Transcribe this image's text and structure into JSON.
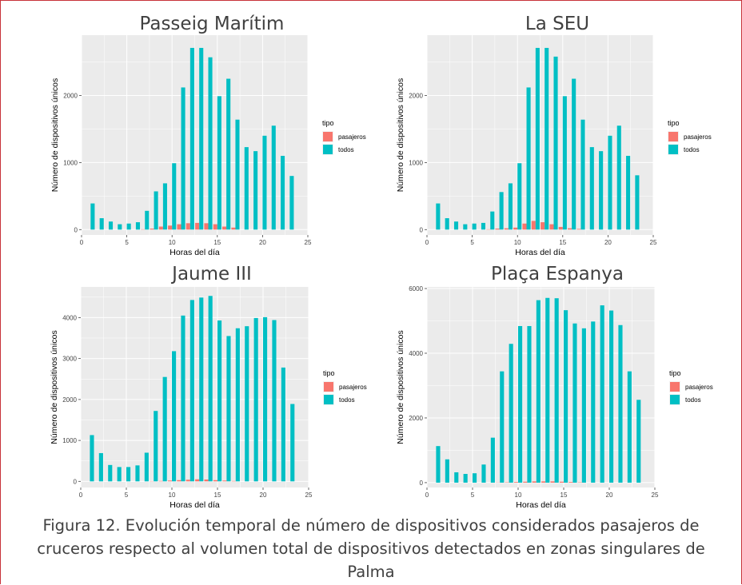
{
  "caption": "Figura 12. Evolución temporal de número de dispositivos considerados pasajeros de cruceros respecto al volumen total de dispositivos detectados en zonas singulares de Palma",
  "colors": {
    "pasajeros": "#f8766d",
    "todos": "#00bfc4",
    "panel": "#ebebeb",
    "grid": "#ffffff"
  },
  "chart_data": [
    {
      "type": "bar",
      "title": "Passeig Marítim",
      "xlabel": "Horas del día",
      "ylabel": "Número de dispositivos únicos",
      "xlim": [
        0,
        25
      ],
      "ylim": [
        -80,
        2900
      ],
      "xticks": [
        0,
        5,
        10,
        15,
        20,
        25
      ],
      "yticks": [
        0,
        1000,
        2000
      ],
      "legend": {
        "title": "tipo",
        "position": "right",
        "entries": [
          "pasajeros",
          "todos"
        ]
      },
      "x": [
        1,
        2,
        3,
        4,
        5,
        6,
        7,
        8,
        9,
        10,
        11,
        12,
        13,
        14,
        15,
        16,
        17,
        18,
        19,
        20,
        21,
        22,
        23
      ],
      "series": [
        {
          "name": "pasajeros",
          "values": [
            0,
            0,
            0,
            0,
            0,
            0,
            5,
            15,
            45,
            60,
            80,
            95,
            100,
            95,
            80,
            45,
            30,
            0,
            0,
            0,
            0,
            0,
            0
          ]
        },
        {
          "name": "todos",
          "values": [
            390,
            170,
            120,
            80,
            90,
            110,
            280,
            570,
            690,
            990,
            2120,
            2710,
            2710,
            2570,
            1990,
            2250,
            1640,
            1230,
            1170,
            1400,
            1550,
            1100,
            800
          ]
        }
      ]
    },
    {
      "type": "bar",
      "title": "La SEU",
      "xlabel": "Horas del día",
      "ylabel": "Número de dispositivos únicos",
      "xlim": [
        0,
        25
      ],
      "ylim": [
        -80,
        2900
      ],
      "xticks": [
        0,
        5,
        10,
        15,
        20,
        25
      ],
      "yticks": [
        0,
        1000,
        2000
      ],
      "legend": {
        "title": "tipo",
        "position": "right",
        "entries": [
          "pasajeros",
          "todos"
        ]
      },
      "x": [
        1,
        2,
        3,
        4,
        5,
        6,
        7,
        8,
        9,
        10,
        11,
        12,
        13,
        14,
        15,
        16,
        17,
        18,
        19,
        20,
        21,
        22,
        23
      ],
      "series": [
        {
          "name": "pasajeros",
          "values": [
            0,
            0,
            0,
            0,
            0,
            0,
            5,
            15,
            20,
            30,
            90,
            130,
            110,
            80,
            40,
            20,
            10,
            0,
            0,
            0,
            0,
            0,
            0
          ]
        },
        {
          "name": "todos",
          "values": [
            390,
            170,
            120,
            80,
            90,
            100,
            270,
            560,
            690,
            990,
            2120,
            2710,
            2710,
            2580,
            1990,
            2250,
            1640,
            1230,
            1170,
            1400,
            1550,
            1100,
            810
          ]
        }
      ]
    },
    {
      "type": "bar",
      "title": "Jaume III",
      "xlabel": "Horas del día",
      "ylabel": "Número de dispositivos únicos",
      "xlim": [
        0,
        25
      ],
      "ylim": [
        -150,
        4750
      ],
      "xticks": [
        0,
        5,
        10,
        15,
        20,
        25
      ],
      "yticks": [
        0,
        1000,
        2000,
        3000,
        4000
      ],
      "legend": {
        "title": "tipo",
        "position": "right",
        "entries": [
          "pasajeros",
          "todos"
        ]
      },
      "x": [
        1,
        2,
        3,
        4,
        5,
        6,
        7,
        8,
        9,
        10,
        11,
        12,
        13,
        14,
        15,
        16,
        17,
        18,
        19,
        20,
        21,
        22,
        23
      ],
      "series": [
        {
          "name": "pasajeros",
          "values": [
            0,
            0,
            0,
            0,
            0,
            0,
            0,
            5,
            10,
            20,
            30,
            40,
            50,
            45,
            30,
            20,
            10,
            0,
            0,
            0,
            0,
            0,
            0
          ]
        },
        {
          "name": "todos",
          "values": [
            1130,
            690,
            400,
            350,
            350,
            390,
            700,
            1720,
            2550,
            3180,
            4050,
            4430,
            4490,
            4530,
            3930,
            3550,
            3740,
            3790,
            3990,
            4010,
            3940,
            2780,
            1890
          ]
        }
      ]
    },
    {
      "type": "bar",
      "title": "Plaça Espanya",
      "xlabel": "Horas del día",
      "ylabel": "Número de dispositivos únicos",
      "xlim": [
        0,
        25
      ],
      "ylim": [
        -150,
        6050
      ],
      "xticks": [
        0,
        5,
        10,
        15,
        20,
        25
      ],
      "yticks": [
        0,
        2000,
        4000,
        6000
      ],
      "legend": {
        "title": "tipo",
        "position": "right",
        "entries": [
          "pasajeros",
          "todos"
        ]
      },
      "x": [
        1,
        2,
        3,
        4,
        5,
        6,
        7,
        8,
        9,
        10,
        11,
        12,
        13,
        14,
        15,
        16,
        17,
        18,
        19,
        20,
        21,
        22,
        23
      ],
      "series": [
        {
          "name": "pasajeros",
          "values": [
            0,
            0,
            0,
            0,
            0,
            0,
            0,
            5,
            10,
            20,
            30,
            40,
            40,
            40,
            30,
            20,
            10,
            0,
            0,
            0,
            0,
            0,
            0
          ]
        },
        {
          "name": "todos",
          "values": [
            1130,
            720,
            320,
            270,
            290,
            560,
            1390,
            3440,
            4290,
            4840,
            4840,
            5640,
            5710,
            5700,
            5330,
            4920,
            4770,
            4980,
            5480,
            5320,
            4870,
            3440,
            2560
          ]
        }
      ]
    }
  ]
}
